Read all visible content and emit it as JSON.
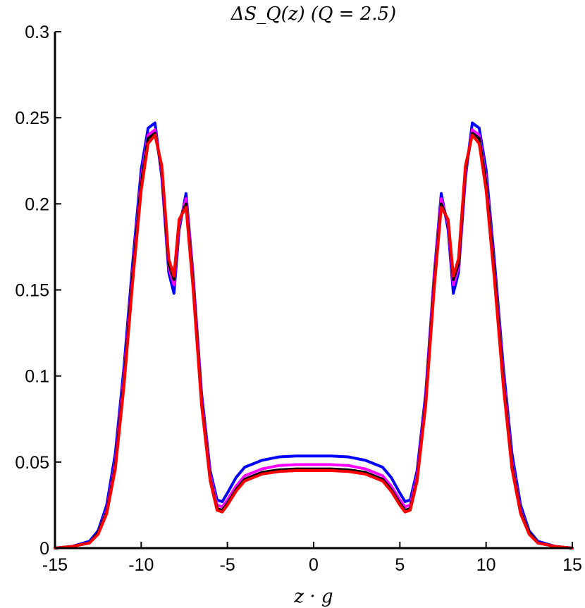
{
  "chart_data": {
    "type": "line",
    "title": "ΔS_Q(z) (Q = 2.5)",
    "xlabel": "z · g",
    "ylabel": "",
    "xlim": [
      -15,
      15
    ],
    "ylim": [
      0,
      0.3
    ],
    "xticks": [
      -15,
      -10,
      -5,
      0,
      5,
      10,
      15
    ],
    "xtick_labels": [
      "-15",
      "-10",
      "-5",
      "0",
      "5",
      "10",
      "15"
    ],
    "yticks": [
      0,
      0.05,
      0.1,
      0.15,
      0.2,
      0.25,
      0.3
    ],
    "ytick_labels": [
      "0",
      "0.05",
      "0.1",
      "0.15",
      "0.2",
      "0.25",
      "0.3"
    ],
    "grid": false,
    "legend": "none",
    "x": [
      -15,
      -14,
      -13,
      -12.5,
      -12,
      -11.5,
      -11,
      -10.5,
      -10,
      -9.6,
      -9.2,
      -8.8,
      -8.4,
      -8.1,
      -7.8,
      -7.4,
      -7.0,
      -6.5,
      -6.0,
      -5.6,
      -5.3,
      -5.0,
      -4.5,
      -4.0,
      -3.0,
      -2.0,
      -1.0,
      0,
      1.0,
      2.0,
      3.0,
      4.0,
      4.5,
      5.0,
      5.3,
      5.6,
      6.0,
      6.5,
      7.0,
      7.4,
      7.8,
      8.1,
      8.4,
      8.8,
      9.2,
      9.6,
      10,
      10.5,
      11,
      11.5,
      12,
      12.5,
      13,
      14,
      15
    ],
    "series": [
      {
        "color": "#0000ff",
        "values": [
          0.0,
          0.001,
          0.004,
          0.01,
          0.025,
          0.055,
          0.105,
          0.165,
          0.22,
          0.244,
          0.247,
          0.215,
          0.16,
          0.148,
          0.185,
          0.206,
          0.16,
          0.09,
          0.045,
          0.028,
          0.027,
          0.032,
          0.041,
          0.047,
          0.051,
          0.053,
          0.0535,
          0.0535,
          0.0535,
          0.053,
          0.051,
          0.047,
          0.041,
          0.032,
          0.027,
          0.028,
          0.045,
          0.09,
          0.16,
          0.206,
          0.185,
          0.148,
          0.16,
          0.215,
          0.247,
          0.244,
          0.22,
          0.165,
          0.105,
          0.055,
          0.025,
          0.01,
          0.004,
          0.001,
          0.0
        ]
      },
      {
        "color": "#ff00ff",
        "values": [
          0.0,
          0.001,
          0.003,
          0.009,
          0.022,
          0.05,
          0.1,
          0.16,
          0.215,
          0.24,
          0.243,
          0.218,
          0.163,
          0.153,
          0.188,
          0.203,
          0.158,
          0.087,
          0.042,
          0.025,
          0.024,
          0.028,
          0.036,
          0.042,
          0.046,
          0.048,
          0.0485,
          0.0485,
          0.0485,
          0.048,
          0.046,
          0.042,
          0.036,
          0.028,
          0.024,
          0.025,
          0.042,
          0.087,
          0.158,
          0.203,
          0.188,
          0.153,
          0.163,
          0.218,
          0.243,
          0.24,
          0.215,
          0.16,
          0.1,
          0.05,
          0.022,
          0.009,
          0.003,
          0.001,
          0.0
        ]
      },
      {
        "color": "#000000",
        "values": [
          0.0,
          0.001,
          0.003,
          0.009,
          0.021,
          0.048,
          0.097,
          0.158,
          0.212,
          0.238,
          0.241,
          0.22,
          0.165,
          0.156,
          0.19,
          0.2,
          0.155,
          0.085,
          0.04,
          0.023,
          0.022,
          0.026,
          0.034,
          0.04,
          0.044,
          0.0455,
          0.046,
          0.046,
          0.046,
          0.0455,
          0.044,
          0.04,
          0.034,
          0.026,
          0.022,
          0.023,
          0.04,
          0.085,
          0.155,
          0.2,
          0.19,
          0.156,
          0.165,
          0.22,
          0.241,
          0.238,
          0.212,
          0.158,
          0.097,
          0.048,
          0.021,
          0.009,
          0.003,
          0.001,
          0.0
        ]
      },
      {
        "color": "#ff0000",
        "values": [
          0.0,
          0.001,
          0.003,
          0.008,
          0.02,
          0.046,
          0.094,
          0.154,
          0.208,
          0.235,
          0.24,
          0.222,
          0.168,
          0.158,
          0.191,
          0.198,
          0.152,
          0.083,
          0.039,
          0.022,
          0.021,
          0.025,
          0.033,
          0.039,
          0.043,
          0.0445,
          0.045,
          0.045,
          0.045,
          0.0445,
          0.043,
          0.039,
          0.033,
          0.025,
          0.021,
          0.022,
          0.039,
          0.083,
          0.152,
          0.198,
          0.191,
          0.158,
          0.168,
          0.222,
          0.24,
          0.235,
          0.208,
          0.154,
          0.094,
          0.046,
          0.02,
          0.008,
          0.003,
          0.001,
          0.0
        ]
      }
    ]
  }
}
